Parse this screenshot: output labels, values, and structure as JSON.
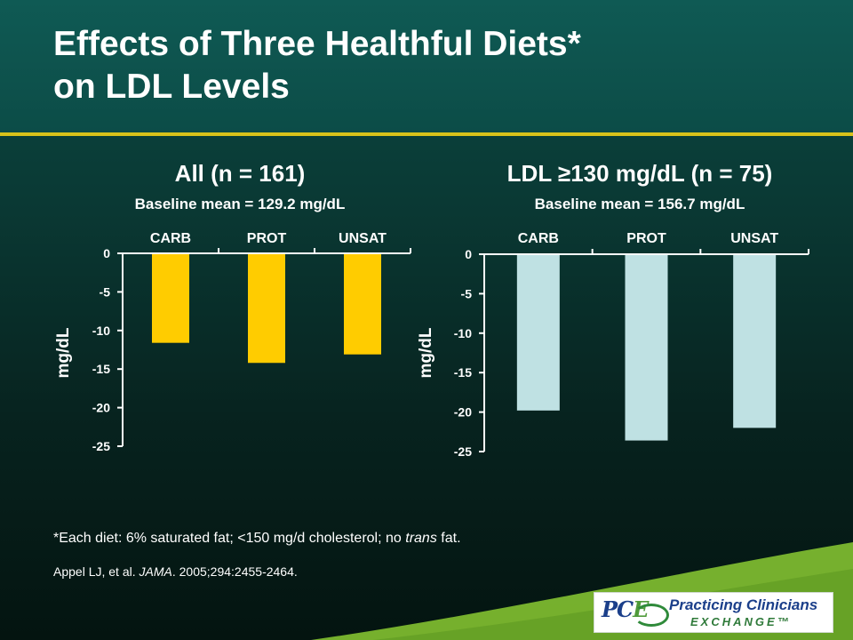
{
  "slide": {
    "title_line1": "Effects of Three Healthful Diets*",
    "title_line2": "on LDL Levels",
    "footnote_prefix": "*Each diet: 6% saturated fat; <150 mg/d cholesterol; no ",
    "footnote_italic": "trans",
    "footnote_suffix": " fat.",
    "citation_prefix": "Appel LJ, et al. ",
    "citation_journal": "JAMA",
    "citation_suffix": ". 2005;294:2455-2464.",
    "logo_mark_prefix": "PC",
    "logo_mark_accent": "E",
    "logo_line1": "Practicing Clinicians",
    "logo_line2": "EXCHANGE™"
  },
  "colors": {
    "rule": "#d8c21a",
    "bar_left": "#ffcc00",
    "bar_right": "#bfe1e3",
    "axis": "#ffffff",
    "swoosh": "#7cb82f"
  },
  "chart_data": [
    {
      "type": "bar",
      "title": "All (n = 161)",
      "subtitle": "Baseline mean = 129.2 mg/dL",
      "categories": [
        "CARB",
        "PROT",
        "UNSAT"
      ],
      "values": [
        -11.6,
        -14.2,
        -13.1
      ],
      "ylabel": "mg/dL",
      "xlabel": "",
      "ylim": [
        -25,
        0
      ],
      "yticks": [
        0,
        -5,
        -10,
        -15,
        -20,
        -25
      ],
      "ytick_labels": [
        "0",
        "-5",
        "-10",
        "-15",
        "-20",
        "-25"
      ],
      "grid": false,
      "category_labels_position": "top"
    },
    {
      "type": "bar",
      "title": "LDL ≥130 mg/dL (n = 75)",
      "subtitle": "Baseline mean = 156.7 mg/dL",
      "categories": [
        "CARB",
        "PROT",
        "UNSAT"
      ],
      "values": [
        -19.8,
        -23.6,
        -22.0
      ],
      "ylabel": "mg/dL",
      "xlabel": "",
      "ylim": [
        -25,
        0
      ],
      "yticks": [
        0,
        -5,
        -10,
        -15,
        -20,
        -25
      ],
      "ytick_labels": [
        "0",
        "-5",
        "-10",
        "-15",
        "-20",
        "-25"
      ],
      "grid": false,
      "category_labels_position": "top"
    }
  ]
}
